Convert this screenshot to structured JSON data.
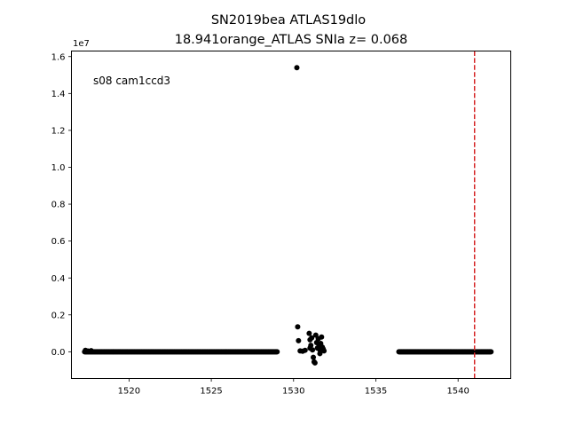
{
  "chart_data": {
    "type": "scatter",
    "title_line1": "SN2019bea  ATLAS19dlo",
    "title_line2": "18.941orange_ATLAS SNIa z= 0.068",
    "annotation": "s08 cam1ccd3",
    "y_offset_label": "1e7",
    "xlabel": "",
    "ylabel": "",
    "xlim": [
      1516.5,
      1543.2
    ],
    "ylim": [
      -1450000,
      16300000
    ],
    "x_ticks": [
      1520,
      1525,
      1530,
      1535,
      1540
    ],
    "y_ticks": [
      0,
      2000000,
      4000000,
      6000000,
      8000000,
      10000000,
      12000000,
      14000000,
      16000000
    ],
    "y_tick_labels": [
      "0.0",
      "0.2",
      "0.4",
      "0.6",
      "0.8",
      "1.0",
      "1.2",
      "1.4",
      "1.6"
    ],
    "x_tick_labels": [
      "1520",
      "1525",
      "1530",
      "1535",
      "1540"
    ],
    "grid": false,
    "legend": "none",
    "marker_color": "#000000",
    "vline": {
      "x": 1541.0,
      "color": "#d62728",
      "style": "dashed"
    },
    "series": [
      {
        "segments": [
          {
            "x_start": 1517.3,
            "x_end": 1529.0,
            "y": 0,
            "points": 300
          },
          {
            "x_start": 1536.4,
            "x_end": 1542.0,
            "y": 0,
            "points": 150
          }
        ],
        "points": [
          [
            1517.35,
            80000
          ],
          [
            1517.5,
            40000
          ],
          [
            1517.7,
            60000
          ],
          [
            1530.2,
            15400000
          ],
          [
            1530.25,
            1350000
          ],
          [
            1530.3,
            600000
          ],
          [
            1530.4,
            50000
          ],
          [
            1530.55,
            30000
          ],
          [
            1530.7,
            80000
          ],
          [
            1530.95,
            1000000
          ],
          [
            1531.0,
            650000
          ],
          [
            1531.05,
            350000
          ],
          [
            1531.1,
            750000
          ],
          [
            1531.15,
            100000
          ],
          [
            1531.2,
            -300000
          ],
          [
            1531.25,
            -550000
          ],
          [
            1531.3,
            -600000
          ],
          [
            1531.35,
            900000
          ],
          [
            1531.4,
            500000
          ],
          [
            1531.45,
            200000
          ],
          [
            1531.5,
            700000
          ],
          [
            1531.55,
            350000
          ],
          [
            1531.6,
            100000
          ],
          [
            1531.65,
            450000
          ],
          [
            1531.7,
            800000
          ],
          [
            1531.75,
            250000
          ],
          [
            1531.8,
            150000
          ],
          [
            1531.85,
            50000
          ],
          [
            1531.6,
            -100000
          ],
          [
            1531.0,
            200000
          ]
        ]
      }
    ]
  }
}
